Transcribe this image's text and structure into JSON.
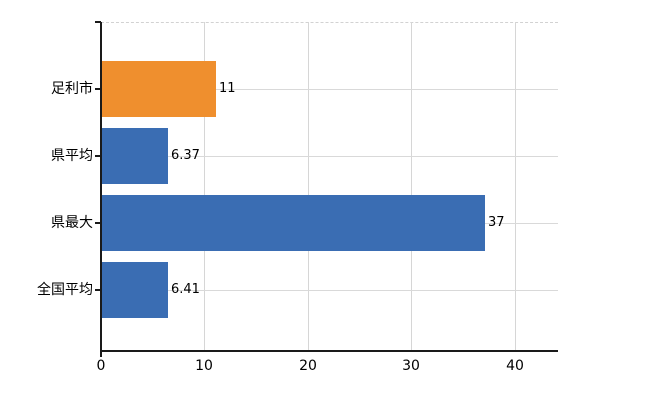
{
  "chart_data": {
    "type": "bar",
    "orientation": "horizontal",
    "title": "",
    "categories": [
      "足利市",
      "県平均",
      "県最大",
      "全国平均"
    ],
    "values": [
      11,
      6.37,
      37,
      6.41
    ],
    "value_labels": [
      "11",
      "6.37",
      "37",
      "6.41"
    ],
    "bar_colors": [
      "#ef8f2e",
      "#3a6db3",
      "#3a6db3",
      "#3a6db3"
    ],
    "highlight_color": "#ef8f2e",
    "default_bar_color": "#3a6db3",
    "x_ticks": [
      "0",
      "10",
      "20",
      "30",
      "40"
    ],
    "x_tick_values": [
      0,
      10,
      20,
      30,
      40
    ],
    "xlim": [
      0,
      44.2
    ],
    "grid": true,
    "legend_position": "none"
  },
  "colors": {
    "axis": "#1a1a1a",
    "grid": "#d6d6d6",
    "text": "#000000",
    "background": "#ffffff"
  }
}
